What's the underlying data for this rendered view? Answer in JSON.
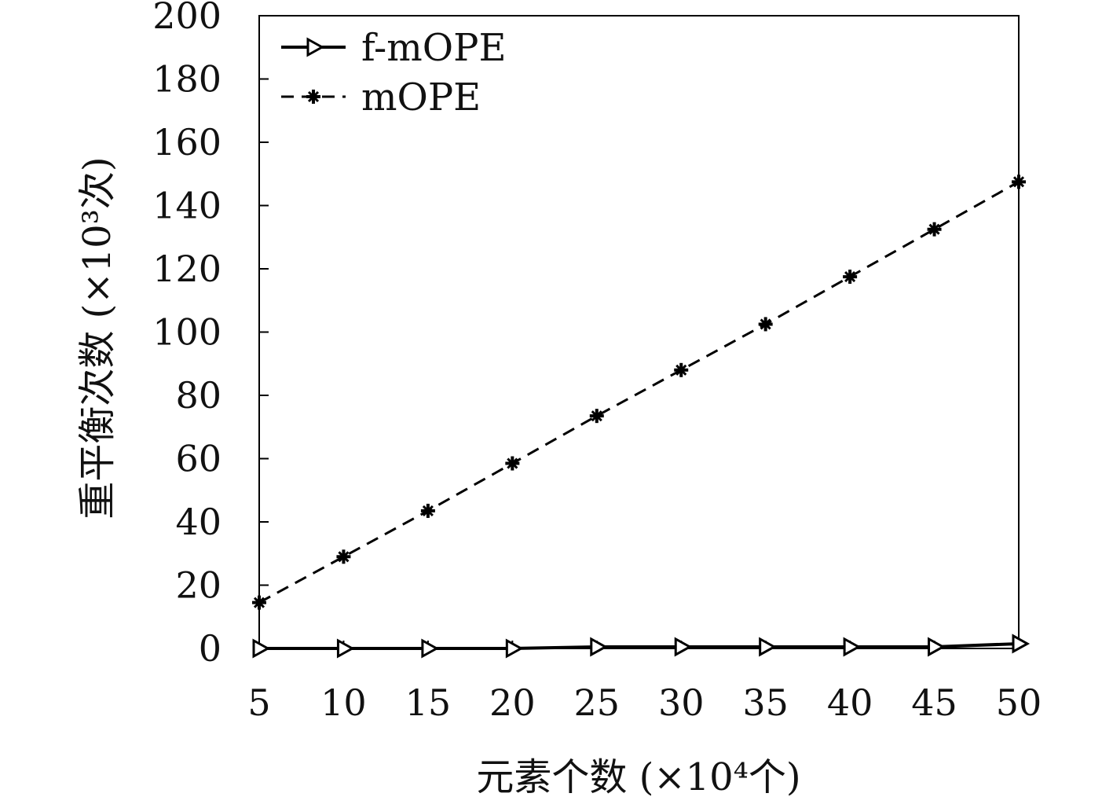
{
  "chart_data": {
    "type": "line",
    "xlabel": "元素个数 (×10⁴个)",
    "ylabel": "重平衡次数 (×10³次)",
    "x": [
      5,
      10,
      15,
      20,
      25,
      30,
      35,
      40,
      45,
      50
    ],
    "xlim": [
      5,
      50
    ],
    "ylim": [
      0,
      200
    ],
    "yticks": [
      0,
      20,
      40,
      60,
      80,
      100,
      120,
      140,
      160,
      180,
      200
    ],
    "grid": false,
    "legend_position": "top-left",
    "series": [
      {
        "name": "f-mOPE",
        "style": "solid",
        "marker": "triangle-right",
        "color": "#000000",
        "values": [
          0,
          0,
          0,
          0,
          0.5,
          0.5,
          0.5,
          0.5,
          0.5,
          1.5
        ]
      },
      {
        "name": "mOPE",
        "style": "dashed",
        "marker": "star",
        "color": "#000000",
        "values": [
          14.5,
          29,
          43.5,
          58.5,
          73.5,
          88,
          102.5,
          117.5,
          132.5,
          147.5
        ]
      }
    ]
  }
}
